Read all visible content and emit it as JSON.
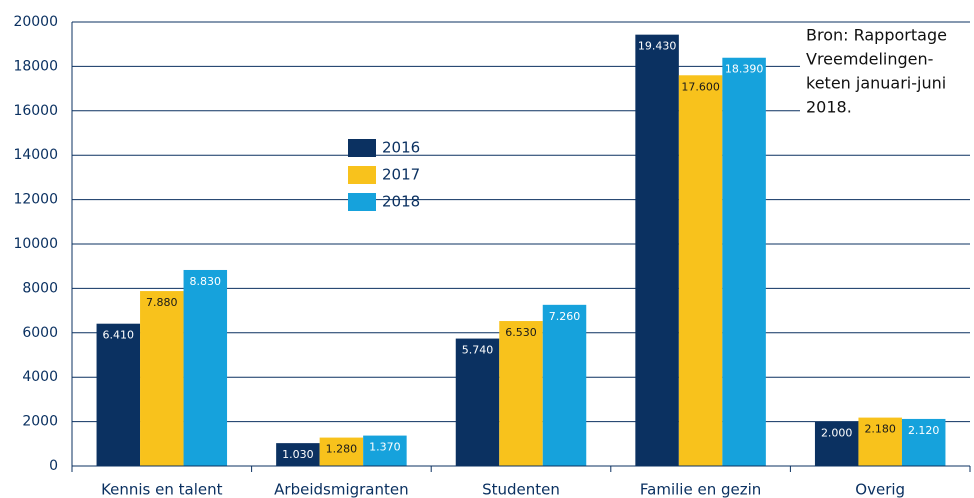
{
  "chart_data": {
    "type": "bar",
    "categories": [
      "Kennis en talent",
      "Arbeidsmigranten",
      "Studenten",
      "Familie en gezin",
      "Overig"
    ],
    "series": [
      {
        "name": "2016",
        "color": "#0b3161",
        "label_color": "#ffffff",
        "values": [
          6410,
          1030,
          5740,
          19430,
          2000
        ],
        "value_labels": [
          "6.410",
          "1.030",
          "5.740",
          "19.430",
          "2.000"
        ]
      },
      {
        "name": "2017",
        "color": "#f8c21c",
        "label_color": "#1a1a1a",
        "values": [
          7880,
          1280,
          6530,
          17600,
          2180
        ],
        "value_labels": [
          "7.880",
          "1.280",
          "6.530",
          "17.600",
          "2.180"
        ]
      },
      {
        "name": "2018",
        "color": "#16a2dc",
        "label_color": "#ffffff",
        "values": [
          8830,
          1370,
          7260,
          18390,
          2120
        ],
        "value_labels": [
          "8.830",
          "1.370",
          "7.260",
          "18.390",
          "2.120"
        ]
      }
    ],
    "ylim": [
      0,
      20000
    ],
    "yticks": [
      0,
      2000,
      4000,
      6000,
      8000,
      10000,
      12000,
      14000,
      16000,
      18000,
      20000
    ],
    "grid": true,
    "annotation_lines": [
      "Bron: Rapportage",
      "Vreemdelingen-",
      "keten januari-juni",
      "2018."
    ]
  }
}
